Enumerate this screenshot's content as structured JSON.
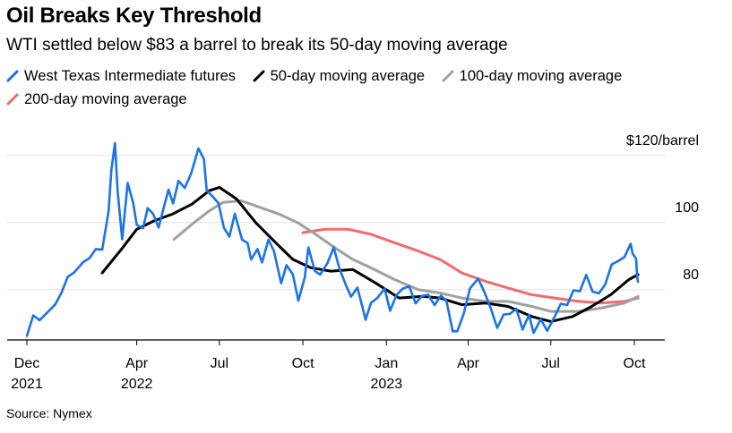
{
  "title": "Oil Breaks Key Threshold",
  "subtitle": "WTI settled below $83 a barrel to break its 50-day moving average",
  "source": "Source: Nymex",
  "colors": {
    "wti": "#1a73e8",
    "ma50": "#000000",
    "ma100": "#a0a0a0",
    "ma200": "#f26b6b"
  },
  "chart_data": {
    "type": "line",
    "title": "Oil Breaks Key Threshold",
    "subtitle": "WTI settled below $83 a barrel to break its 50-day moving average",
    "ylabel": "",
    "y_unit_label": "$120/barrel",
    "ylim": [
      65,
      125
    ],
    "xlim": [
      "2021-12-01",
      "2023-10-31"
    ],
    "grid": true,
    "legend_position": "top-left",
    "y_ticks": [
      {
        "value": 120,
        "label": "$120/barrel"
      },
      {
        "value": 100,
        "label": "100"
      },
      {
        "value": 80,
        "label": "80"
      }
    ],
    "x_ticks": [
      {
        "date": "2021-12-01",
        "month": "Dec",
        "year": "2021"
      },
      {
        "date": "2022-04-01",
        "month": "Apr",
        "year": "2022"
      },
      {
        "date": "2022-07-01",
        "month": "Jul",
        "year": ""
      },
      {
        "date": "2022-10-01",
        "month": "Oct",
        "year": ""
      },
      {
        "date": "2023-01-01",
        "month": "Jan",
        "year": "2023"
      },
      {
        "date": "2023-04-01",
        "month": "Apr",
        "year": ""
      },
      {
        "date": "2023-07-01",
        "month": "Jul",
        "year": ""
      },
      {
        "date": "2023-10-01",
        "month": "Oct",
        "year": ""
      }
    ],
    "series": [
      {
        "name": "West Texas Intermediate futures",
        "color": "#1a73e8",
        "points": [
          [
            "2021-12-01",
            66.2
          ],
          [
            "2021-12-08",
            72.3
          ],
          [
            "2021-12-15",
            70.9
          ],
          [
            "2021-12-22",
            72.8
          ],
          [
            "2022-01-01",
            75.5
          ],
          [
            "2022-01-08",
            79.0
          ],
          [
            "2022-01-15",
            83.8
          ],
          [
            "2022-01-22",
            85.1
          ],
          [
            "2022-02-01",
            88.2
          ],
          [
            "2022-02-08",
            89.4
          ],
          [
            "2022-02-15",
            92.1
          ],
          [
            "2022-02-22",
            91.9
          ],
          [
            "2022-03-01",
            103.4
          ],
          [
            "2022-03-04",
            115.7
          ],
          [
            "2022-03-08",
            123.7
          ],
          [
            "2022-03-11",
            109.3
          ],
          [
            "2022-03-16",
            95.0
          ],
          [
            "2022-03-22",
            111.8
          ],
          [
            "2022-03-28",
            105.9
          ],
          [
            "2022-04-01",
            99.3
          ],
          [
            "2022-04-08",
            98.3
          ],
          [
            "2022-04-13",
            104.3
          ],
          [
            "2022-04-19",
            102.6
          ],
          [
            "2022-04-25",
            98.5
          ],
          [
            "2022-05-01",
            104.7
          ],
          [
            "2022-05-06",
            109.8
          ],
          [
            "2022-05-11",
            105.7
          ],
          [
            "2022-05-17",
            112.4
          ],
          [
            "2022-05-24",
            110.3
          ],
          [
            "2022-05-31",
            114.7
          ],
          [
            "2022-06-08",
            122.1
          ],
          [
            "2022-06-14",
            118.9
          ],
          [
            "2022-06-17",
            109.6
          ],
          [
            "2022-06-24",
            107.6
          ],
          [
            "2022-06-30",
            105.8
          ],
          [
            "2022-07-06",
            98.5
          ],
          [
            "2022-07-12",
            95.8
          ],
          [
            "2022-07-18",
            102.6
          ],
          [
            "2022-07-26",
            94.9
          ],
          [
            "2022-08-01",
            93.9
          ],
          [
            "2022-08-05",
            89.0
          ],
          [
            "2022-08-12",
            92.1
          ],
          [
            "2022-08-17",
            88.1
          ],
          [
            "2022-08-24",
            94.9
          ],
          [
            "2022-08-30",
            91.6
          ],
          [
            "2022-09-07",
            81.9
          ],
          [
            "2022-09-13",
            87.3
          ],
          [
            "2022-09-20",
            84.5
          ],
          [
            "2022-09-26",
            76.7
          ],
          [
            "2022-10-03",
            83.6
          ],
          [
            "2022-10-07",
            92.6
          ],
          [
            "2022-10-14",
            85.6
          ],
          [
            "2022-10-20",
            84.5
          ],
          [
            "2022-10-28",
            87.9
          ],
          [
            "2022-11-04",
            92.6
          ],
          [
            "2022-11-10",
            86.5
          ],
          [
            "2022-11-17",
            81.6
          ],
          [
            "2022-11-23",
            77.9
          ],
          [
            "2022-11-30",
            80.6
          ],
          [
            "2022-12-06",
            74.3
          ],
          [
            "2022-12-09",
            71.0
          ],
          [
            "2022-12-15",
            76.1
          ],
          [
            "2022-12-22",
            77.5
          ],
          [
            "2022-12-30",
            80.3
          ],
          [
            "2023-01-05",
            73.7
          ],
          [
            "2023-01-12",
            78.4
          ],
          [
            "2023-01-19",
            80.3
          ],
          [
            "2023-01-26",
            81.0
          ],
          [
            "2023-02-02",
            75.9
          ],
          [
            "2023-02-09",
            78.1
          ],
          [
            "2023-02-16",
            78.5
          ],
          [
            "2023-02-23",
            75.4
          ],
          [
            "2023-03-02",
            78.2
          ],
          [
            "2023-03-08",
            76.7
          ],
          [
            "2023-03-15",
            67.6
          ],
          [
            "2023-03-20",
            67.6
          ],
          [
            "2023-03-27",
            72.8
          ],
          [
            "2023-04-03",
            80.4
          ],
          [
            "2023-04-12",
            83.3
          ],
          [
            "2023-04-19",
            79.2
          ],
          [
            "2023-04-26",
            74.3
          ],
          [
            "2023-05-03",
            68.6
          ],
          [
            "2023-05-10",
            72.6
          ],
          [
            "2023-05-17",
            72.8
          ],
          [
            "2023-05-24",
            74.3
          ],
          [
            "2023-05-31",
            68.1
          ],
          [
            "2023-06-07",
            72.5
          ],
          [
            "2023-06-12",
            67.1
          ],
          [
            "2023-06-20",
            71.2
          ],
          [
            "2023-06-27",
            67.7
          ],
          [
            "2023-07-05",
            71.8
          ],
          [
            "2023-07-12",
            75.8
          ],
          [
            "2023-07-19",
            75.4
          ],
          [
            "2023-07-26",
            79.8
          ],
          [
            "2023-08-02",
            79.5
          ],
          [
            "2023-08-09",
            84.4
          ],
          [
            "2023-08-16",
            79.4
          ],
          [
            "2023-08-23",
            78.9
          ],
          [
            "2023-08-30",
            81.6
          ],
          [
            "2023-09-06",
            87.5
          ],
          [
            "2023-09-13",
            88.5
          ],
          [
            "2023-09-20",
            89.7
          ],
          [
            "2023-09-27",
            93.7
          ],
          [
            "2023-09-29",
            90.8
          ],
          [
            "2023-10-03",
            89.2
          ],
          [
            "2023-10-04",
            84.2
          ],
          [
            "2023-10-05",
            82.3
          ]
        ]
      },
      {
        "name": "50-day moving average",
        "color": "#000000",
        "points": [
          [
            "2022-02-22",
            85.0
          ],
          [
            "2022-03-15",
            92.0
          ],
          [
            "2022-04-01",
            98.0
          ],
          [
            "2022-04-20",
            100.5
          ],
          [
            "2022-05-10",
            102.5
          ],
          [
            "2022-06-01",
            105.5
          ],
          [
            "2022-06-20",
            109.5
          ],
          [
            "2022-07-01",
            110.5
          ],
          [
            "2022-07-20",
            107.0
          ],
          [
            "2022-08-10",
            100.0
          ],
          [
            "2022-09-01",
            94.0
          ],
          [
            "2022-09-20",
            89.0
          ],
          [
            "2022-10-10",
            86.5
          ],
          [
            "2022-11-01",
            85.5
          ],
          [
            "2022-11-25",
            86.0
          ],
          [
            "2022-12-20",
            82.0
          ],
          [
            "2023-01-15",
            77.5
          ],
          [
            "2023-02-10",
            78.0
          ],
          [
            "2023-03-01",
            77.5
          ],
          [
            "2023-03-25",
            75.5
          ],
          [
            "2023-04-20",
            76.0
          ],
          [
            "2023-05-15",
            75.0
          ],
          [
            "2023-06-10",
            72.0
          ],
          [
            "2023-07-01",
            70.5
          ],
          [
            "2023-07-25",
            72.0
          ],
          [
            "2023-08-15",
            75.0
          ],
          [
            "2023-09-05",
            78.5
          ],
          [
            "2023-09-25",
            83.0
          ],
          [
            "2023-10-05",
            84.5
          ]
        ]
      },
      {
        "name": "100-day moving average",
        "color": "#a0a0a0",
        "points": [
          [
            "2022-05-12",
            95.0
          ],
          [
            "2022-06-01",
            99.5
          ],
          [
            "2022-06-20",
            103.5
          ],
          [
            "2022-07-05",
            106.0
          ],
          [
            "2022-07-25",
            106.5
          ],
          [
            "2022-08-15",
            104.5
          ],
          [
            "2022-09-05",
            102.5
          ],
          [
            "2022-09-25",
            100.0
          ],
          [
            "2022-10-15",
            96.5
          ],
          [
            "2022-11-05",
            92.5
          ],
          [
            "2022-11-25",
            89.0
          ],
          [
            "2022-12-15",
            86.5
          ],
          [
            "2023-01-10",
            83.0
          ],
          [
            "2023-02-05",
            80.0
          ],
          [
            "2023-03-01",
            79.0
          ],
          [
            "2023-03-25",
            77.5
          ],
          [
            "2023-04-20",
            76.5
          ],
          [
            "2023-05-15",
            76.5
          ],
          [
            "2023-06-10",
            75.0
          ],
          [
            "2023-07-01",
            73.5
          ],
          [
            "2023-08-01",
            73.5
          ],
          [
            "2023-08-25",
            74.5
          ],
          [
            "2023-09-20",
            76.0
          ],
          [
            "2023-10-05",
            78.0
          ]
        ]
      },
      {
        "name": "200-day moving average",
        "color": "#f26b6b",
        "points": [
          [
            "2022-10-01",
            97.0
          ],
          [
            "2022-10-25",
            98.0
          ],
          [
            "2022-11-20",
            98.0
          ],
          [
            "2022-12-15",
            96.5
          ],
          [
            "2023-01-10",
            94.0
          ],
          [
            "2023-02-05",
            91.5
          ],
          [
            "2023-03-01",
            89.0
          ],
          [
            "2023-03-25",
            85.0
          ],
          [
            "2023-04-20",
            82.5
          ],
          [
            "2023-05-15",
            80.5
          ],
          [
            "2023-06-10",
            78.5
          ],
          [
            "2023-07-05",
            77.5
          ],
          [
            "2023-08-01",
            76.5
          ],
          [
            "2023-08-25",
            76.0
          ],
          [
            "2023-09-20",
            76.5
          ],
          [
            "2023-10-05",
            77.5
          ]
        ]
      }
    ]
  }
}
